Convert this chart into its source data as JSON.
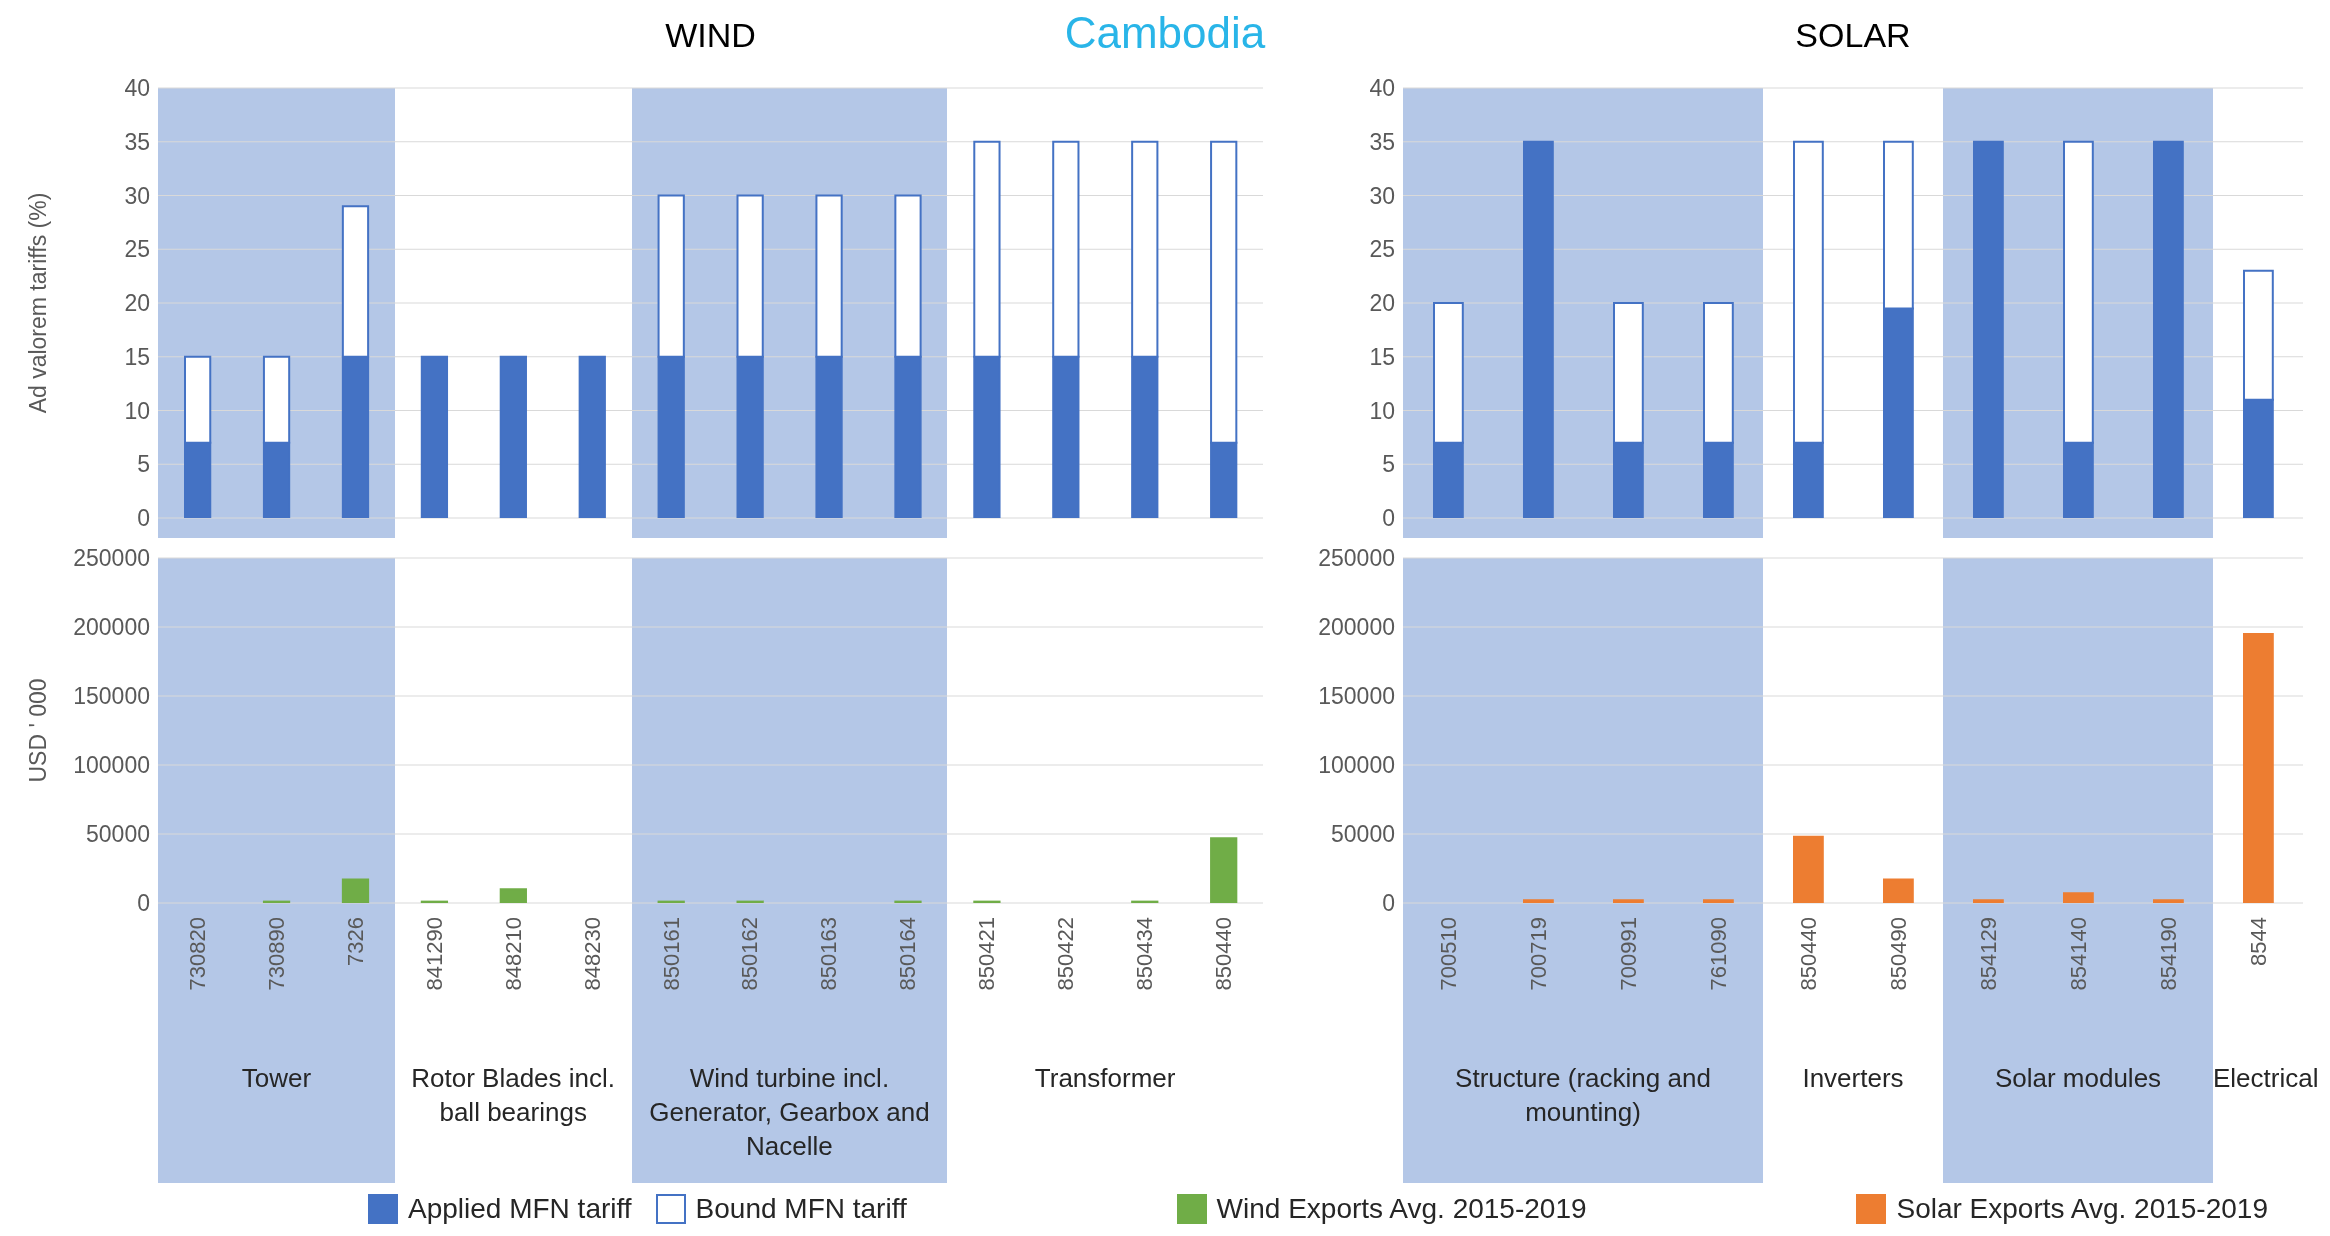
{
  "chart_data": [
    {
      "type": "bar",
      "title": "WIND",
      "ylabel": "Ad valorem tariffs (%)",
      "annotations": [
        "Cambodia"
      ],
      "stacked": true,
      "tick_labels": "y",
      "grid": "y",
      "legend": "bottom",
      "categories": [
        "730820",
        "730890",
        "7326",
        "841290",
        "848210",
        "848230",
        "850161",
        "850162",
        "850163",
        "850164",
        "850421",
        "850422",
        "850434",
        "850440"
      ],
      "series": [
        {
          "name": "Applied MFN tariff",
          "color": "#4472c4",
          "values": [
            7,
            7,
            15,
            15,
            15,
            15,
            15,
            15,
            15,
            15,
            15,
            15,
            15,
            7
          ]
        },
        {
          "name": "Bound MFN tariff",
          "color": "#ffffff",
          "values": [
            8,
            8,
            14,
            null,
            null,
            null,
            15,
            15,
            15,
            15,
            20,
            20,
            20,
            28
          ]
        }
      ],
      "ylim": [
        0,
        40
      ],
      "yticks": [
        0,
        5,
        10,
        15,
        20,
        25,
        30,
        35,
        40
      ],
      "bands": [
        {
          "axis": "x",
          "from": "730820",
          "to": "7326",
          "color": "#b4c7e7"
        },
        {
          "axis": "x",
          "from": "850161",
          "to": "850164",
          "color": "#b4c7e7"
        }
      ]
    },
    {
      "type": "bar",
      "title": "SOLAR",
      "stacked": true,
      "tick_labels": "y",
      "grid": "y",
      "categories": [
        "700510",
        "700719",
        "700991",
        "761090",
        "850440",
        "850490",
        "854129",
        "854140",
        "854190",
        "8544"
      ],
      "series": [
        {
          "color": "#4472c4",
          "values": [
            7,
            35,
            7,
            7,
            7,
            19.5,
            35,
            7,
            35,
            11
          ]
        },
        {
          "color": "#ffffff",
          "values": [
            13,
            null,
            13,
            13,
            28,
            15.5,
            null,
            28,
            null,
            12
          ]
        }
      ],
      "ylim": [
        0,
        40
      ],
      "yticks": [
        0,
        5,
        10,
        15,
        20,
        25,
        30,
        35,
        40
      ],
      "bands": [
        {
          "axis": "x",
          "from": "700510",
          "to": "761090",
          "color": "#b4c7e7"
        },
        {
          "axis": "x",
          "from": "854129",
          "to": "854190",
          "color": "#b4c7e7"
        }
      ]
    },
    {
      "type": "bar",
      "ylabel": "USD ' 000",
      "grid": "y",
      "legend": "bottom",
      "categories": [
        "730820",
        "730890",
        "7326",
        "841290",
        "848210",
        "848230",
        "850161",
        "850162",
        "850163",
        "850164",
        "850421",
        "850422",
        "850434",
        "850440"
      ],
      "series": [
        {
          "name": "Wind Exports Avg. 2015-2019",
          "color": "#70ad47",
          "values": [
            0,
            1000,
            17000,
            1000,
            10000,
            0,
            1000,
            1000,
            0,
            1000,
            1000,
            0,
            1000,
            47000
          ]
        }
      ],
      "ylim": [
        0,
        250000
      ],
      "yticks": [
        0,
        50000,
        100000,
        150000,
        200000,
        250000
      ],
      "bands": [
        {
          "axis": "x",
          "from": "730820",
          "to": "7326",
          "label": "Tower",
          "color": "#b4c7e7"
        },
        {
          "axis": "x",
          "from": "850161",
          "to": "850164",
          "label": "Wind turbine incl. Generator, Gearbox and Nacelle",
          "color": "#b4c7e7"
        }
      ],
      "annotations": [
        "Rotor Blades incl. ball bearings",
        "Transformer"
      ]
    },
    {
      "type": "bar",
      "grid": "y",
      "legend": "bottom",
      "categories": [
        "700510",
        "700719",
        "700991",
        "761090",
        "850440",
        "850490",
        "854129",
        "854140",
        "854190",
        "8544"
      ],
      "series": [
        {
          "name": "Solar Exports Avg. 2015-2019",
          "color": "#ed7d31",
          "values": [
            0,
            2000,
            2000,
            2000,
            48000,
            17000,
            2000,
            7000,
            2000,
            195000
          ]
        }
      ],
      "ylim": [
        0,
        250000
      ],
      "yticks": [
        0,
        50000,
        100000,
        150000,
        200000,
        250000
      ],
      "bands": [
        {
          "axis": "x",
          "from": "700510",
          "to": "761090",
          "label": "Structure (racking and mounting)",
          "color": "#b4c7e7"
        },
        {
          "axis": "x",
          "from": "854129",
          "to": "854190",
          "label": "Solar modules",
          "color": "#b4c7e7"
        }
      ],
      "annotations": [
        "Inverters",
        "Electrical"
      ]
    }
  ]
}
